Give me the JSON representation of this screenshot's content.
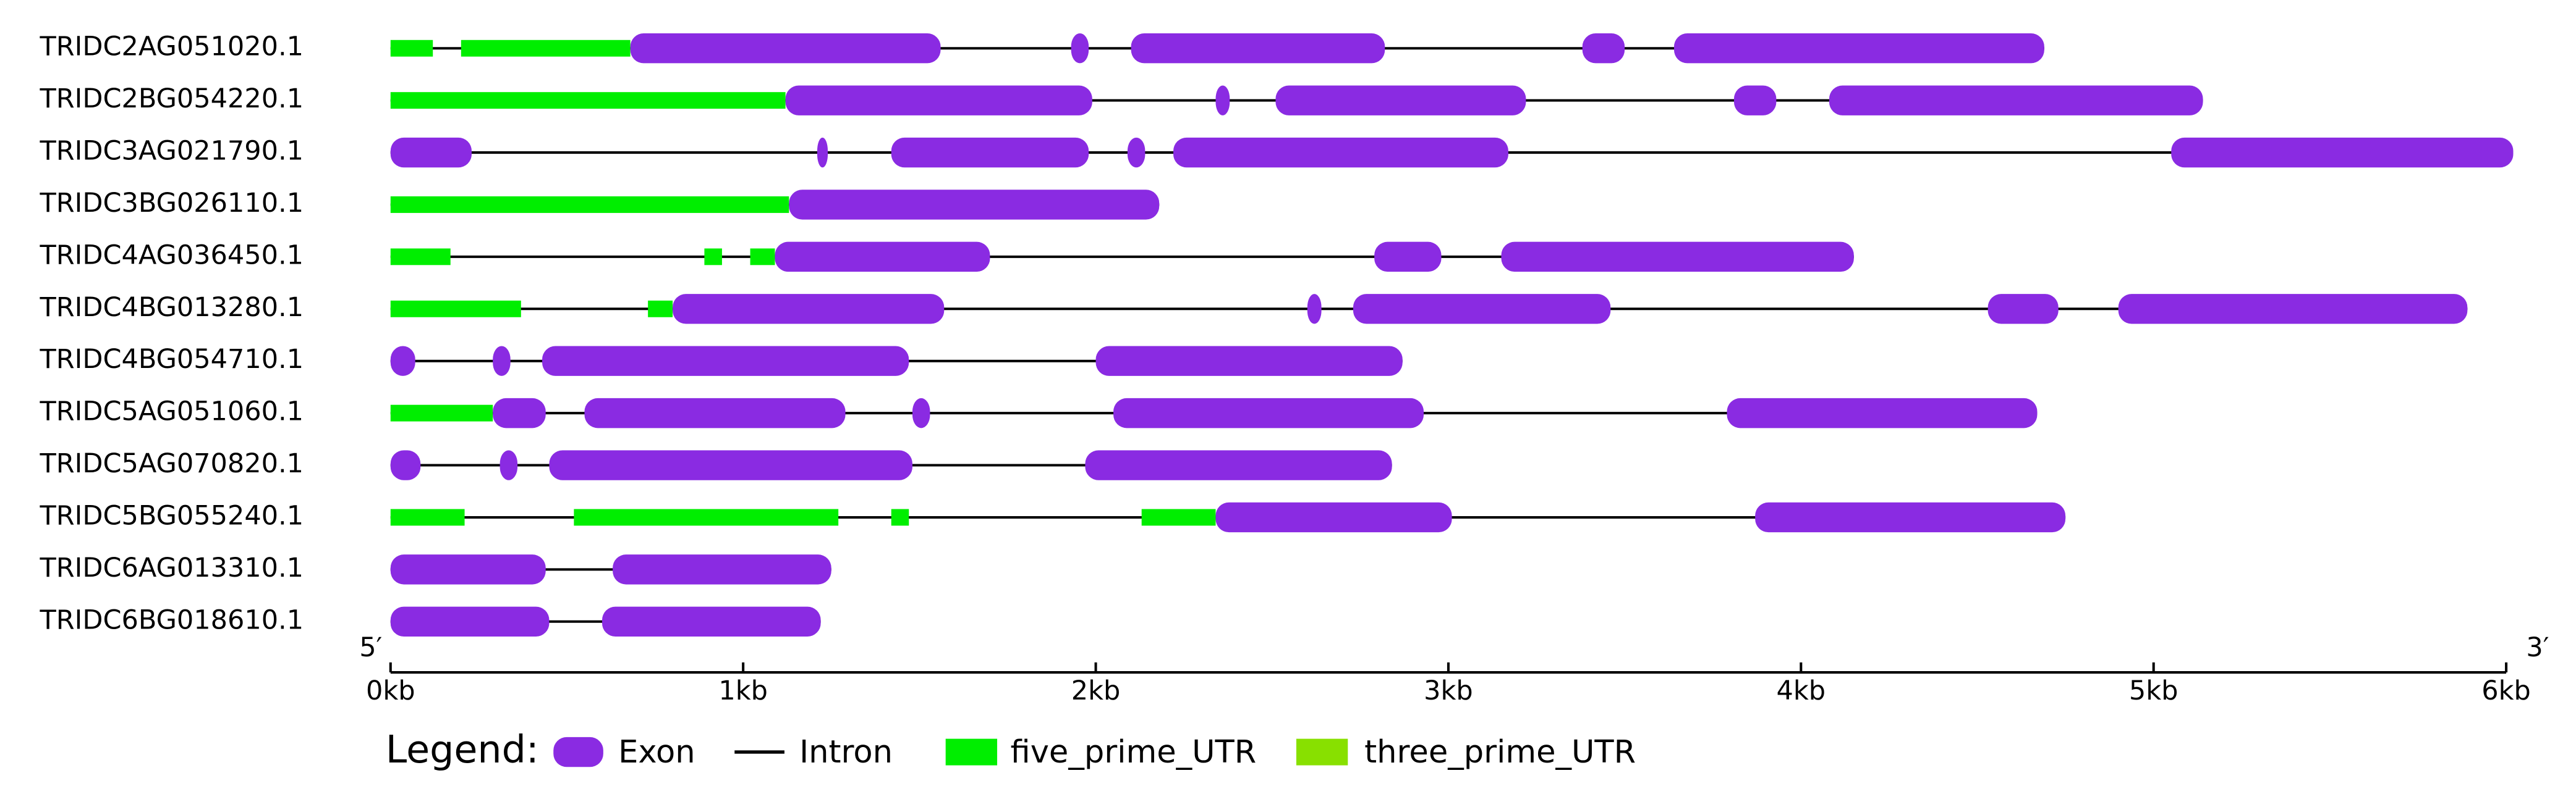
{
  "chart_data": {
    "type": "gene_structure",
    "xlim": [
      0,
      6
    ],
    "xticks": [
      {
        "value": 0,
        "label": "0kb"
      },
      {
        "value": 1,
        "label": "1kb"
      },
      {
        "value": 2,
        "label": "2kb"
      },
      {
        "value": 3,
        "label": "3kb"
      },
      {
        "value": 4,
        "label": "4kb"
      },
      {
        "value": 5,
        "label": "5kb"
      },
      {
        "value": 6,
        "label": "6kb"
      }
    ],
    "start_label": "5′",
    "end_label": "3′",
    "legend_title": "Legend:",
    "series": [
      {
        "name": "Exon",
        "color": "#8a2be2"
      },
      {
        "name": "Intron",
        "color": "#000000"
      },
      {
        "name": "five_prime_UTR",
        "color": "#00ee00"
      },
      {
        "name": "three_prime_UTR",
        "color": "#88e000"
      }
    ],
    "genes": [
      {
        "name": "TRIDC2AG051020.1",
        "utr5": [
          [
            0,
            0.12
          ],
          [
            0.2,
            0.68
          ]
        ],
        "exons": [
          [
            0.68,
            1.56
          ],
          [
            1.93,
            1.98
          ],
          [
            2.1,
            2.82
          ],
          [
            3.38,
            3.5
          ],
          [
            3.64,
            4.69
          ]
        ]
      },
      {
        "name": "TRIDC2BG054220.1",
        "utr5": [
          [
            0,
            1.12
          ]
        ],
        "exons": [
          [
            1.12,
            1.99
          ],
          [
            2.34,
            2.38
          ],
          [
            2.51,
            3.22
          ],
          [
            3.81,
            3.93
          ],
          [
            4.08,
            5.14
          ]
        ]
      },
      {
        "name": "TRIDC3AG021790.1",
        "utr5": [],
        "exons": [
          [
            0,
            0.23
          ],
          [
            1.21,
            1.24
          ],
          [
            1.42,
            1.98
          ],
          [
            2.09,
            2.14
          ],
          [
            2.22,
            3.17
          ],
          [
            5.05,
            6.02
          ]
        ]
      },
      {
        "name": "TRIDC3BG026110.1",
        "utr5": [
          [
            0,
            1.13
          ]
        ],
        "exons": [
          [
            1.13,
            2.18
          ]
        ]
      },
      {
        "name": "TRIDC4AG036450.1",
        "utr5": [
          [
            0,
            0.17
          ],
          [
            0.89,
            0.94
          ],
          [
            1.02,
            1.09
          ]
        ],
        "exons": [
          [
            1.09,
            1.7
          ],
          [
            2.79,
            2.98
          ],
          [
            3.15,
            4.15
          ]
        ]
      },
      {
        "name": "TRIDC4BG013280.1",
        "utr5": [
          [
            0,
            0.37
          ],
          [
            0.73,
            0.8
          ]
        ],
        "exons": [
          [
            0.8,
            1.57
          ],
          [
            2.6,
            2.64
          ],
          [
            2.73,
            3.46
          ],
          [
            4.53,
            4.73
          ],
          [
            4.9,
            5.89
          ]
        ]
      },
      {
        "name": "TRIDC4BG054710.1",
        "utr5": [],
        "exons": [
          [
            0,
            0.07
          ],
          [
            0.29,
            0.34
          ],
          [
            0.43,
            1.47
          ],
          [
            2.0,
            2.87
          ]
        ]
      },
      {
        "name": "TRIDC5AG051060.1",
        "utr5": [
          [
            0,
            0.29
          ]
        ],
        "exons": [
          [
            0.29,
            0.44
          ],
          [
            0.55,
            1.29
          ],
          [
            1.48,
            1.53
          ],
          [
            2.05,
            2.93
          ],
          [
            3.79,
            4.67
          ]
        ]
      },
      {
        "name": "TRIDC5AG070820.1",
        "utr5": [],
        "exons": [
          [
            0,
            0.085
          ],
          [
            0.31,
            0.36
          ],
          [
            0.45,
            1.48
          ],
          [
            1.97,
            2.84
          ]
        ]
      },
      {
        "name": "TRIDC5BG055240.1",
        "utr5": [
          [
            0,
            0.21
          ],
          [
            0.52,
            1.27
          ],
          [
            1.42,
            1.47
          ],
          [
            2.13,
            2.34
          ]
        ],
        "exons": [
          [
            2.34,
            3.01
          ],
          [
            3.87,
            4.75
          ]
        ]
      },
      {
        "name": "TRIDC6AG013310.1",
        "utr5": [],
        "exons": [
          [
            0,
            0.44
          ],
          [
            0.63,
            1.25
          ]
        ]
      },
      {
        "name": "TRIDC6BG018610.1",
        "utr5": [],
        "exons": [
          [
            0,
            0.45
          ],
          [
            0.6,
            1.22
          ]
        ]
      }
    ]
  }
}
